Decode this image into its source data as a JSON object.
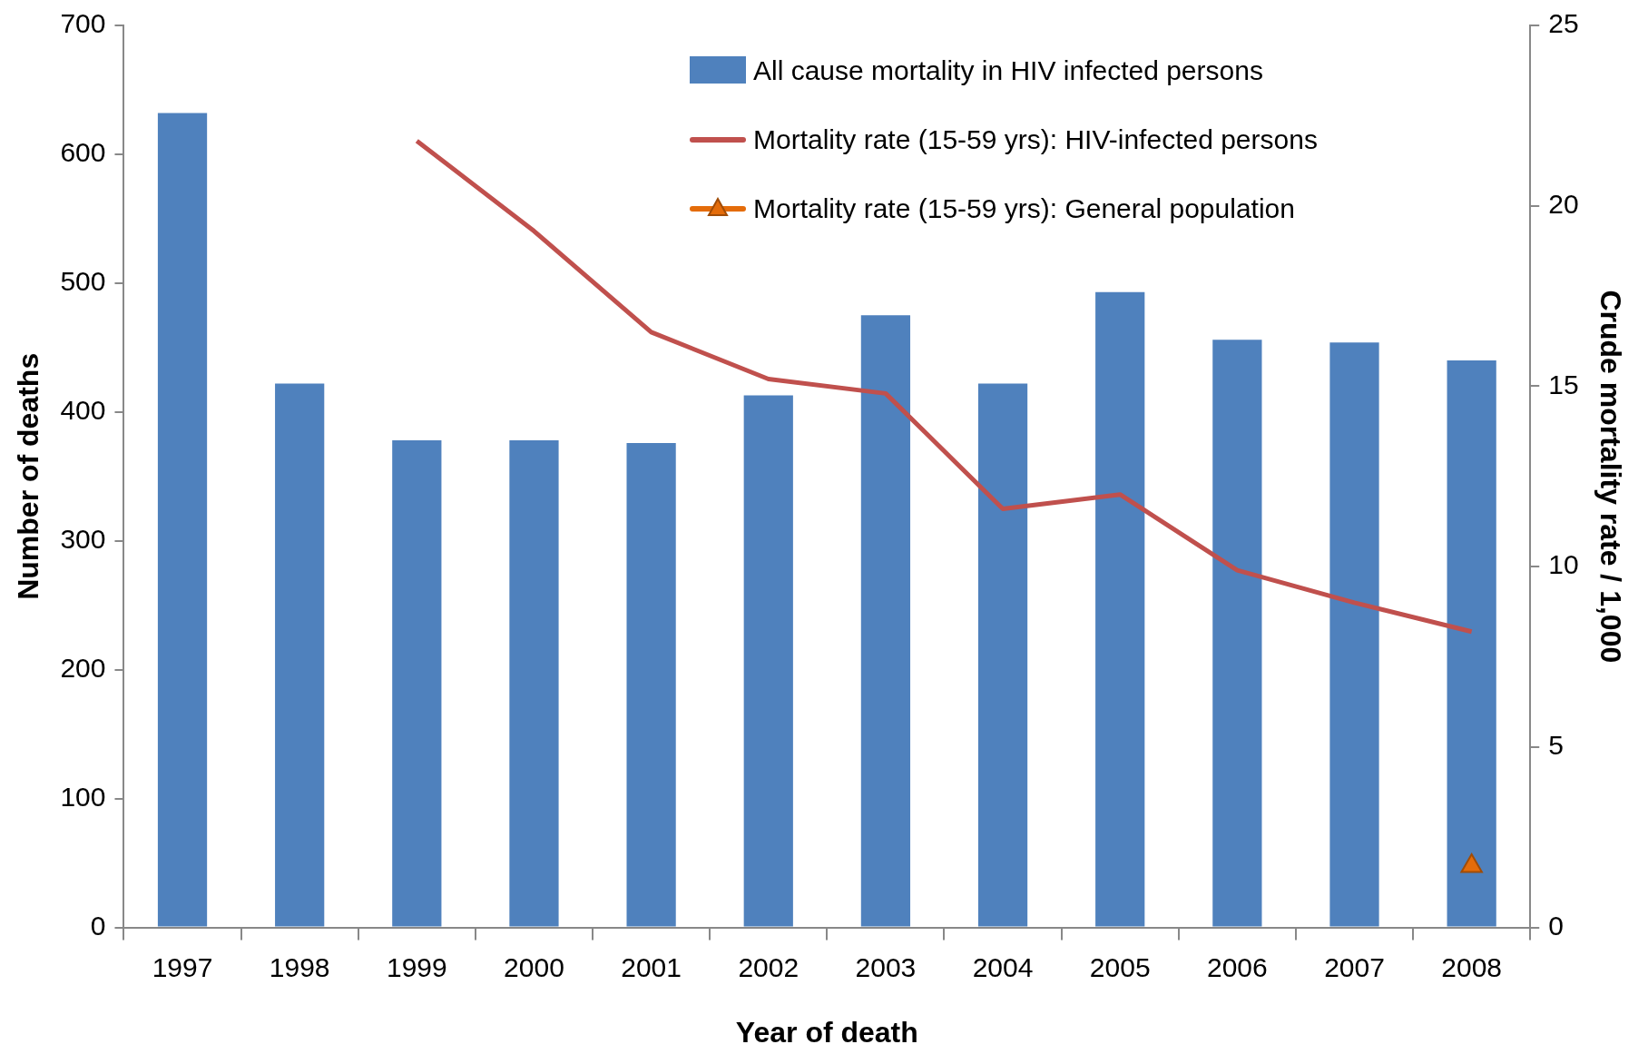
{
  "chart_data": {
    "type": "bar",
    "xlabel": "Year of death",
    "ylabel": "Number of deaths",
    "y2label": "Crude mortality rate / 1,000",
    "categories": [
      "1997",
      "1998",
      "1999",
      "2000",
      "2001",
      "2002",
      "2003",
      "2004",
      "2005",
      "2006",
      "2007",
      "2008"
    ],
    "series": [
      {
        "name": "All cause mortality in HIV infected persons",
        "color": "#4f81bd",
        "values": [
          632,
          422,
          378,
          378,
          376,
          413,
          475,
          422,
          493,
          456,
          454,
          440
        ]
      },
      {
        "name": "Mortality rate (15-59 yrs): HIV-infected persons",
        "type": "line",
        "axis": "y2",
        "color": "#c0504d",
        "marker": "none",
        "values": [
          null,
          null,
          21.8,
          19.3,
          16.5,
          15.2,
          14.8,
          11.6,
          12.0,
          9.9,
          9.0,
          8.2
        ]
      },
      {
        "name": "Mortality rate (15-59 yrs): General population",
        "type": "line",
        "axis": "y2",
        "color": "#e46c0a",
        "marker": "triangle",
        "values": [
          null,
          null,
          null,
          null,
          null,
          null,
          null,
          null,
          null,
          null,
          null,
          1.7
        ]
      }
    ],
    "ylim": [
      0,
      700
    ],
    "yticks": [
      0,
      100,
      200,
      300,
      400,
      500,
      600,
      700
    ],
    "y2lim": [
      0,
      25
    ],
    "y2ticks": [
      0,
      5,
      10,
      15,
      20,
      25
    ],
    "grid": false,
    "legend": "top right"
  }
}
